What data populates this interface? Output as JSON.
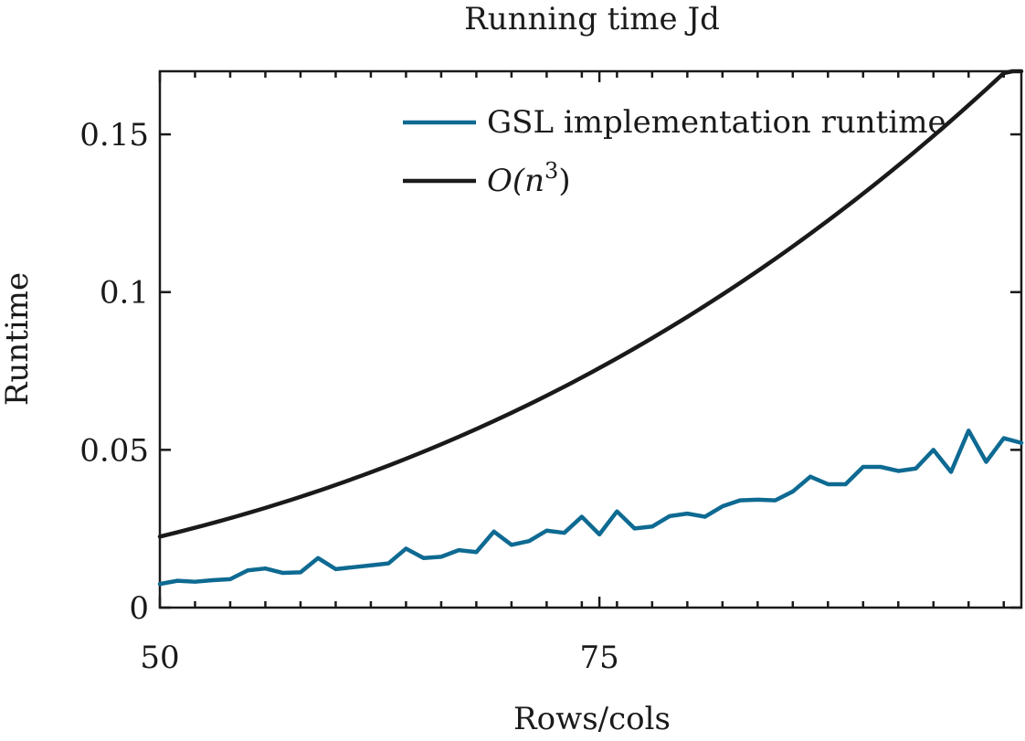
{
  "chart_data": {
    "type": "line",
    "title": "Running time Jd",
    "xlabel": "Rows/cols",
    "ylabel": "Runtime",
    "xlim": [
      50,
      99
    ],
    "ylim": [
      0,
      0.17
    ],
    "x_ticks": [
      50,
      75
    ],
    "x_tick_labels": [
      "50",
      "75"
    ],
    "y_ticks": [
      0,
      0.05,
      0.1,
      0.15
    ],
    "y_tick_labels": [
      "0",
      "0.05",
      "0.1",
      "0.15"
    ],
    "legend_position": "top-right",
    "series": [
      {
        "name": "GSL implementation runtime",
        "color": "#0e6a92",
        "x": [
          50,
          51,
          52,
          53,
          54,
          55,
          56,
          57,
          58,
          59,
          60,
          61,
          62,
          63,
          64,
          65,
          66,
          67,
          68,
          69,
          70,
          71,
          72,
          73,
          74,
          75,
          76,
          77,
          78,
          79,
          80,
          81,
          82,
          83,
          84,
          85,
          86,
          87,
          88,
          89,
          90,
          91,
          92,
          93,
          94,
          95,
          96,
          97,
          98,
          99
        ],
        "values": [
          0.0075,
          0.0085,
          0.0082,
          0.0087,
          0.009,
          0.0118,
          0.0124,
          0.011,
          0.0112,
          0.0157,
          0.0122,
          0.0128,
          0.0134,
          0.014,
          0.0187,
          0.0157,
          0.0161,
          0.0182,
          0.0176,
          0.0241,
          0.0199,
          0.0211,
          0.0244,
          0.0237,
          0.0288,
          0.0232,
          0.0305,
          0.0251,
          0.0257,
          0.029,
          0.0298,
          0.0288,
          0.0321,
          0.034,
          0.0342,
          0.034,
          0.0368,
          0.0415,
          0.0391,
          0.0391,
          0.0446,
          0.0446,
          0.0433,
          0.0441,
          0.05,
          0.043,
          0.0561,
          0.0462,
          0.0537,
          0.0522
        ]
      },
      {
        "name": "O(n^3)",
        "legend_math": {
          "base": "O(n",
          "exponent": "3",
          "close": ")"
        },
        "color": "#1a1a1a",
        "formula": "0.0225*(x/50)^3",
        "x": [
          50,
          55,
          60,
          65,
          70,
          75,
          80,
          85,
          90,
          95,
          99
        ],
        "values": [
          0.0225,
          0.0299,
          0.0389,
          0.0494,
          0.0617,
          0.0759,
          0.0922,
          0.1105,
          0.1312,
          0.1543,
          0.1746
        ]
      }
    ]
  }
}
